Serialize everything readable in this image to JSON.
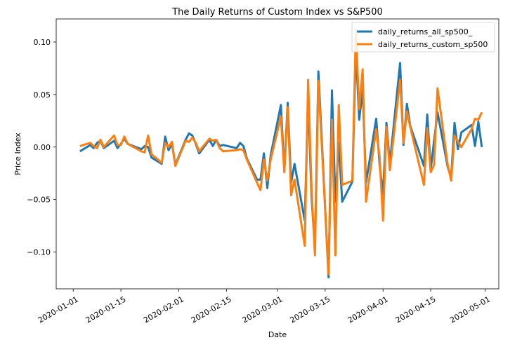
{
  "chart_data": {
    "type": "line",
    "title": "The Daily Returns of  Custom Index vs S&P500",
    "xlabel": "Date",
    "ylabel": "Price Index",
    "x_ticks": [
      "2020-01-01",
      "2020-01-15",
      "2020-02-01",
      "2020-02-15",
      "2020-03-01",
      "2020-03-15",
      "2020-04-01",
      "2020-04-15",
      "2020-05-01"
    ],
    "y_ticks": [
      -0.1,
      -0.05,
      0.0,
      0.05,
      0.1
    ],
    "y_tick_labels": [
      "−0.10",
      "−0.05",
      "0.00",
      "0.05",
      "0.10"
    ],
    "xlim": [
      "2019-12-27",
      "2020-05-05"
    ],
    "ylim": [
      -0.135,
      0.122
    ],
    "grid": false,
    "legend_position": "top-right",
    "colors": {
      "series_1": "#1f77b4",
      "series_2": "#ff7f0e"
    },
    "series": [
      {
        "name": "daily_returns_all_sp500_",
        "points": [
          [
            "2020-01-03",
            -0.004
          ],
          [
            "2020-01-06",
            0.002
          ],
          [
            "2020-01-07",
            -0.001
          ],
          [
            "2020-01-08",
            0.004
          ],
          [
            "2020-01-09",
            0.006
          ],
          [
            "2020-01-10",
            -0.001
          ],
          [
            "2020-01-13",
            0.006
          ],
          [
            "2020-01-14",
            -0.001
          ],
          [
            "2020-01-15",
            0.003
          ],
          [
            "2020-01-16",
            0.008
          ],
          [
            "2020-01-17",
            0.003
          ],
          [
            "2020-01-21",
            -0.002
          ],
          [
            "2020-01-22",
            0.001
          ],
          [
            "2020-01-23",
            0.0
          ],
          [
            "2020-01-24",
            -0.01
          ],
          [
            "2020-01-27",
            -0.016
          ],
          [
            "2020-01-28",
            0.01
          ],
          [
            "2020-01-29",
            -0.003
          ],
          [
            "2020-01-30",
            0.003
          ],
          [
            "2020-01-31",
            -0.017
          ],
          [
            "2020-02-03",
            0.007
          ],
          [
            "2020-02-04",
            0.013
          ],
          [
            "2020-02-05",
            0.011
          ],
          [
            "2020-02-06",
            0.003
          ],
          [
            "2020-02-07",
            -0.006
          ],
          [
            "2020-02-10",
            0.007
          ],
          [
            "2020-02-11",
            0.001
          ],
          [
            "2020-02-12",
            0.007
          ],
          [
            "2020-02-13",
            0.001
          ],
          [
            "2020-02-14",
            0.002
          ],
          [
            "2020-02-18",
            -0.001
          ],
          [
            "2020-02-19",
            0.004
          ],
          [
            "2020-02-20",
            0.001
          ],
          [
            "2020-02-21",
            -0.011
          ],
          [
            "2020-02-24",
            -0.031
          ],
          [
            "2020-02-25",
            -0.031
          ],
          [
            "2020-02-26",
            -0.006
          ],
          [
            "2020-02-27",
            -0.039
          ],
          [
            "2020-02-28",
            -0.008
          ],
          [
            "2020-03-02",
            0.04
          ],
          [
            "2020-03-03",
            -0.023
          ],
          [
            "2020-03-04",
            0.042
          ],
          [
            "2020-03-05",
            -0.034
          ],
          [
            "2020-03-06",
            -0.016
          ],
          [
            "2020-03-09",
            -0.07
          ],
          [
            "2020-03-10",
            0.047
          ],
          [
            "2020-03-11",
            -0.048
          ],
          [
            "2020-03-12",
            -0.097
          ],
          [
            "2020-03-13",
            0.072
          ],
          [
            "2020-03-16",
            -0.124
          ],
          [
            "2020-03-17",
            0.054
          ],
          [
            "2020-03-18",
            -0.052
          ],
          [
            "2020-03-19",
            0.004
          ],
          [
            "2020-03-20",
            -0.052
          ],
          [
            "2020-03-23",
            -0.033
          ],
          [
            "2020-03-24",
            0.094
          ],
          [
            "2020-03-25",
            0.026
          ],
          [
            "2020-03-26",
            0.055
          ],
          [
            "2020-03-27",
            -0.034
          ],
          [
            "2020-03-30",
            0.027
          ],
          [
            "2020-03-31",
            -0.017
          ],
          [
            "2020-04-01",
            -0.045
          ],
          [
            "2020-04-02",
            0.023
          ],
          [
            "2020-04-03",
            -0.016
          ],
          [
            "2020-04-06",
            0.08
          ],
          [
            "2020-04-07",
            0.002
          ],
          [
            "2020-04-08",
            0.041
          ],
          [
            "2020-04-09",
            0.02
          ],
          [
            "2020-04-13",
            -0.018
          ],
          [
            "2020-04-14",
            0.031
          ],
          [
            "2020-04-15",
            -0.021
          ],
          [
            "2020-04-16",
            0.006
          ],
          [
            "2020-04-17",
            0.033
          ],
          [
            "2020-04-20",
            -0.019
          ],
          [
            "2020-04-21",
            -0.029
          ],
          [
            "2020-04-22",
            0.023
          ],
          [
            "2020-04-23",
            -0.002
          ],
          [
            "2020-04-24",
            0.014
          ],
          [
            "2020-04-27",
            0.021
          ],
          [
            "2020-04-28",
            0.001
          ],
          [
            "2020-04-29",
            0.024
          ],
          [
            "2020-04-30",
            0.0
          ]
        ]
      },
      {
        "name": "daily_returns_custom_sp500",
        "points": [
          [
            "2020-01-03",
            0.001
          ],
          [
            "2020-01-06",
            0.004
          ],
          [
            "2020-01-07",
            0.001
          ],
          [
            "2020-01-08",
            -0.001
          ],
          [
            "2020-01-09",
            0.007
          ],
          [
            "2020-01-10",
            0.0
          ],
          [
            "2020-01-13",
            0.011
          ],
          [
            "2020-01-14",
            0.002
          ],
          [
            "2020-01-15",
            0.002
          ],
          [
            "2020-01-16",
            0.01
          ],
          [
            "2020-01-17",
            0.003
          ],
          [
            "2020-01-21",
            -0.004
          ],
          [
            "2020-01-22",
            -0.005
          ],
          [
            "2020-01-23",
            0.011
          ],
          [
            "2020-01-24",
            -0.007
          ],
          [
            "2020-01-27",
            -0.015
          ],
          [
            "2020-01-28",
            0.004
          ],
          [
            "2020-01-29",
            0.0
          ],
          [
            "2020-01-30",
            0.005
          ],
          [
            "2020-01-31",
            -0.018
          ],
          [
            "2020-02-03",
            0.006
          ],
          [
            "2020-02-04",
            0.005
          ],
          [
            "2020-02-05",
            0.009
          ],
          [
            "2020-02-06",
            0.004
          ],
          [
            "2020-02-07",
            -0.004
          ],
          [
            "2020-02-10",
            0.008
          ],
          [
            "2020-02-11",
            0.006
          ],
          [
            "2020-02-12",
            0.007
          ],
          [
            "2020-02-13",
            -0.001
          ],
          [
            "2020-02-14",
            -0.004
          ],
          [
            "2020-02-18",
            -0.003
          ],
          [
            "2020-02-19",
            -0.002
          ],
          [
            "2020-02-20",
            -0.003
          ],
          [
            "2020-02-21",
            -0.012
          ],
          [
            "2020-02-24",
            -0.034
          ],
          [
            "2020-02-25",
            -0.041
          ],
          [
            "2020-02-26",
            -0.012
          ],
          [
            "2020-02-27",
            -0.032
          ],
          [
            "2020-02-28",
            -0.012
          ],
          [
            "2020-03-02",
            0.029
          ],
          [
            "2020-03-03",
            -0.024
          ],
          [
            "2020-03-04",
            0.038
          ],
          [
            "2020-03-05",
            -0.046
          ],
          [
            "2020-03-06",
            -0.031
          ],
          [
            "2020-03-09",
            -0.094
          ],
          [
            "2020-03-10",
            0.064
          ],
          [
            "2020-03-11",
            -0.04
          ],
          [
            "2020-03-12",
            -0.103
          ],
          [
            "2020-03-13",
            0.063
          ],
          [
            "2020-03-16",
            -0.121
          ],
          [
            "2020-03-17",
            0.026
          ],
          [
            "2020-03-18",
            -0.103
          ],
          [
            "2020-03-19",
            0.04
          ],
          [
            "2020-03-20",
            -0.036
          ],
          [
            "2020-03-23",
            -0.032
          ],
          [
            "2020-03-24",
            0.111
          ],
          [
            "2020-03-25",
            0.036
          ],
          [
            "2020-03-26",
            0.074
          ],
          [
            "2020-03-27",
            -0.052
          ],
          [
            "2020-03-30",
            0.017
          ],
          [
            "2020-03-31",
            -0.01
          ],
          [
            "2020-04-01",
            -0.07
          ],
          [
            "2020-04-02",
            0.019
          ],
          [
            "2020-04-03",
            -0.022
          ],
          [
            "2020-04-06",
            0.064
          ],
          [
            "2020-04-07",
            0.004
          ],
          [
            "2020-04-08",
            0.034
          ],
          [
            "2020-04-09",
            0.019
          ],
          [
            "2020-04-13",
            -0.036
          ],
          [
            "2020-04-14",
            0.018
          ],
          [
            "2020-04-15",
            -0.024
          ],
          [
            "2020-04-16",
            -0.017
          ],
          [
            "2020-04-17",
            0.056
          ],
          [
            "2020-04-20",
            -0.017
          ],
          [
            "2020-04-21",
            -0.032
          ],
          [
            "2020-04-22",
            0.011
          ],
          [
            "2020-04-23",
            0.005
          ],
          [
            "2020-04-24",
            0.0
          ],
          [
            "2020-04-27",
            0.017
          ],
          [
            "2020-04-28",
            0.027
          ],
          [
            "2020-04-29",
            0.026
          ],
          [
            "2020-04-30",
            0.033
          ]
        ]
      }
    ]
  }
}
